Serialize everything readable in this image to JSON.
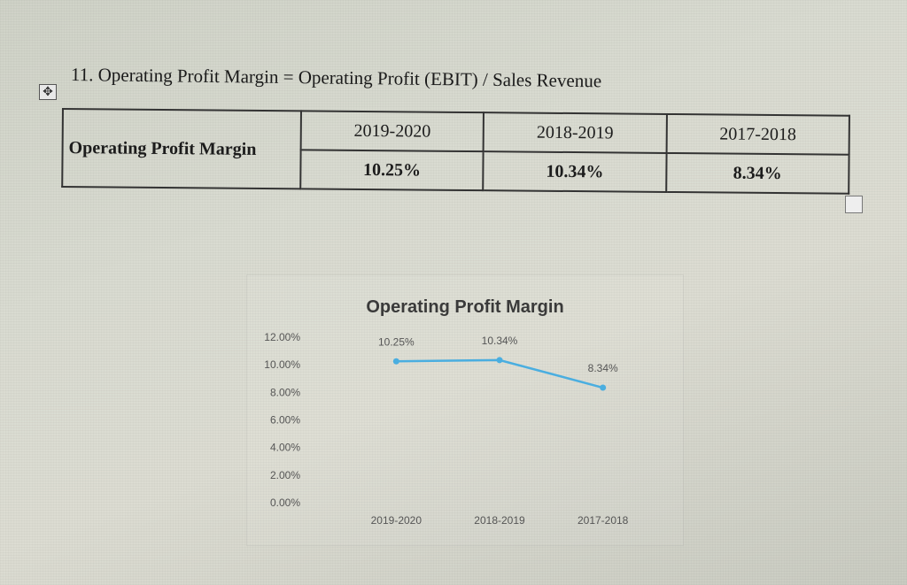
{
  "heading": "11. Operating Profit Margin = Operating Profit (EBIT) / Sales Revenue",
  "table": {
    "row_label": "Operating Profit Margin",
    "columns": [
      {
        "period": "2019-2020",
        "value": "10.25%"
      },
      {
        "period": "2018-2019",
        "value": "10.34%"
      },
      {
        "period": "2017-2018",
        "value": "8.34%"
      }
    ]
  },
  "icons": {
    "move_handle": "move-arrows-icon",
    "resize_handle": "resize-square-icon"
  },
  "chart_data": {
    "type": "line",
    "title": "Operating Profit Margin",
    "categories": [
      "2019-2020",
      "2018-2019",
      "2017-2018"
    ],
    "series": [
      {
        "values": [
          10.25,
          10.34,
          8.34
        ],
        "labels": [
          "10.25%",
          "10.34%",
          "8.34%"
        ],
        "color": "#4aaee0"
      }
    ],
    "yticks": [
      "0.00%",
      "2.00%",
      "4.00%",
      "6.00%",
      "8.00%",
      "10.00%",
      "12.00%"
    ],
    "ylim": [
      0,
      12
    ],
    "grid": false,
    "legend": "none"
  }
}
